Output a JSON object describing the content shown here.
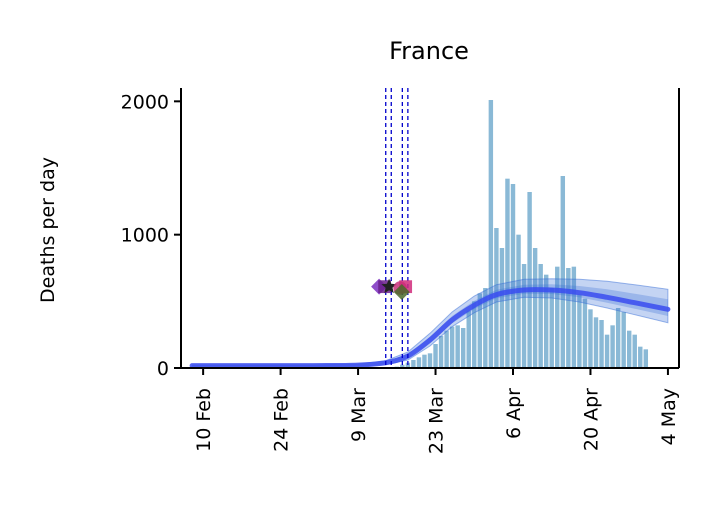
{
  "chart_data": {
    "type": "bar",
    "title": "France",
    "ylabel": "Deaths per day",
    "xlabel": "",
    "ylim": [
      0,
      2100
    ],
    "yticks": [
      0,
      1000,
      2000
    ],
    "x_range": [
      "2020-02-06",
      "2020-05-06"
    ],
    "xticks": [
      {
        "date": "2020-02-10",
        "label": "10 Feb"
      },
      {
        "date": "2020-02-24",
        "label": "24 Feb"
      },
      {
        "date": "2020-03-09",
        "label": "9 Mar"
      },
      {
        "date": "2020-03-23",
        "label": "23 Mar"
      },
      {
        "date": "2020-04-06",
        "label": "6 Apr"
      },
      {
        "date": "2020-04-20",
        "label": "20 Apr"
      },
      {
        "date": "2020-05-04",
        "label": "4 May"
      }
    ],
    "bar_start_date": "2020-03-15",
    "bar_values": [
      5,
      10,
      25,
      40,
      60,
      80,
      100,
      110,
      180,
      240,
      280,
      310,
      320,
      300,
      430,
      500,
      560,
      600,
      2010,
      1050,
      900,
      1420,
      1380,
      1000,
      780,
      1320,
      900,
      780,
      700,
      600,
      760,
      1440,
      750,
      760,
      550,
      520,
      440,
      380,
      360,
      250,
      320,
      450,
      420,
      280,
      250,
      160,
      140
    ],
    "bar_color": "#8ab9d6",
    "model_start_date": "2020-02-08",
    "model_end_date": "2020-05-04",
    "model_points": [
      {
        "date": "2020-02-08",
        "y": 18
      },
      {
        "date": "2020-03-01",
        "y": 18
      },
      {
        "date": "2020-03-09",
        "y": 22
      },
      {
        "date": "2020-03-14",
        "y": 40
      },
      {
        "date": "2020-03-18",
        "y": 90
      },
      {
        "date": "2020-03-22",
        "y": 210
      },
      {
        "date": "2020-03-26",
        "y": 360
      },
      {
        "date": "2020-03-30",
        "y": 470
      },
      {
        "date": "2020-04-03",
        "y": 550
      },
      {
        "date": "2020-04-08",
        "y": 585
      },
      {
        "date": "2020-04-13",
        "y": 585
      },
      {
        "date": "2020-04-18",
        "y": 565
      },
      {
        "date": "2020-04-23",
        "y": 530
      },
      {
        "date": "2020-04-28",
        "y": 490
      },
      {
        "date": "2020-05-04",
        "y": 440
      }
    ],
    "model_band_upper_offset": [
      5,
      5,
      8,
      15,
      30,
      50,
      60,
      70,
      75,
      80,
      85,
      100,
      120,
      135,
      150
    ],
    "model_band_lower_offset": [
      5,
      5,
      8,
      15,
      30,
      45,
      50,
      55,
      55,
      55,
      60,
      70,
      80,
      90,
      100
    ],
    "model_color": "#3a4cf0",
    "band_color": "#3a6fd8",
    "interventions": [
      {
        "date": "2020-03-14",
        "color": "#0000cc"
      },
      {
        "date": "2020-03-15",
        "color": "#0000cc"
      },
      {
        "date": "2020-03-17",
        "color": "#0000cc"
      },
      {
        "date": "2020-03-18",
        "color": "#0000cc"
      }
    ],
    "intervention_markers": [
      {
        "date": "2020-03-12.8",
        "y": 610,
        "shape": "diamond",
        "color": "#7b2fbf"
      },
      {
        "date": "2020-03-13.8",
        "y": 610,
        "shape": "square",
        "color": "#6a1e8a"
      },
      {
        "date": "2020-03-14.6",
        "y": 610,
        "shape": "star",
        "color": "#222222"
      },
      {
        "date": "2020-03-16.6",
        "y": 600,
        "shape": "circle",
        "color": "#c8307a"
      },
      {
        "date": "2020-03-17.6",
        "y": 610,
        "shape": "square",
        "color": "#d02a7a"
      },
      {
        "date": "2020-03-16.9",
        "y": 570,
        "shape": "diamond",
        "color": "#4a6a2a"
      }
    ],
    "grid": false,
    "legend": "none"
  }
}
